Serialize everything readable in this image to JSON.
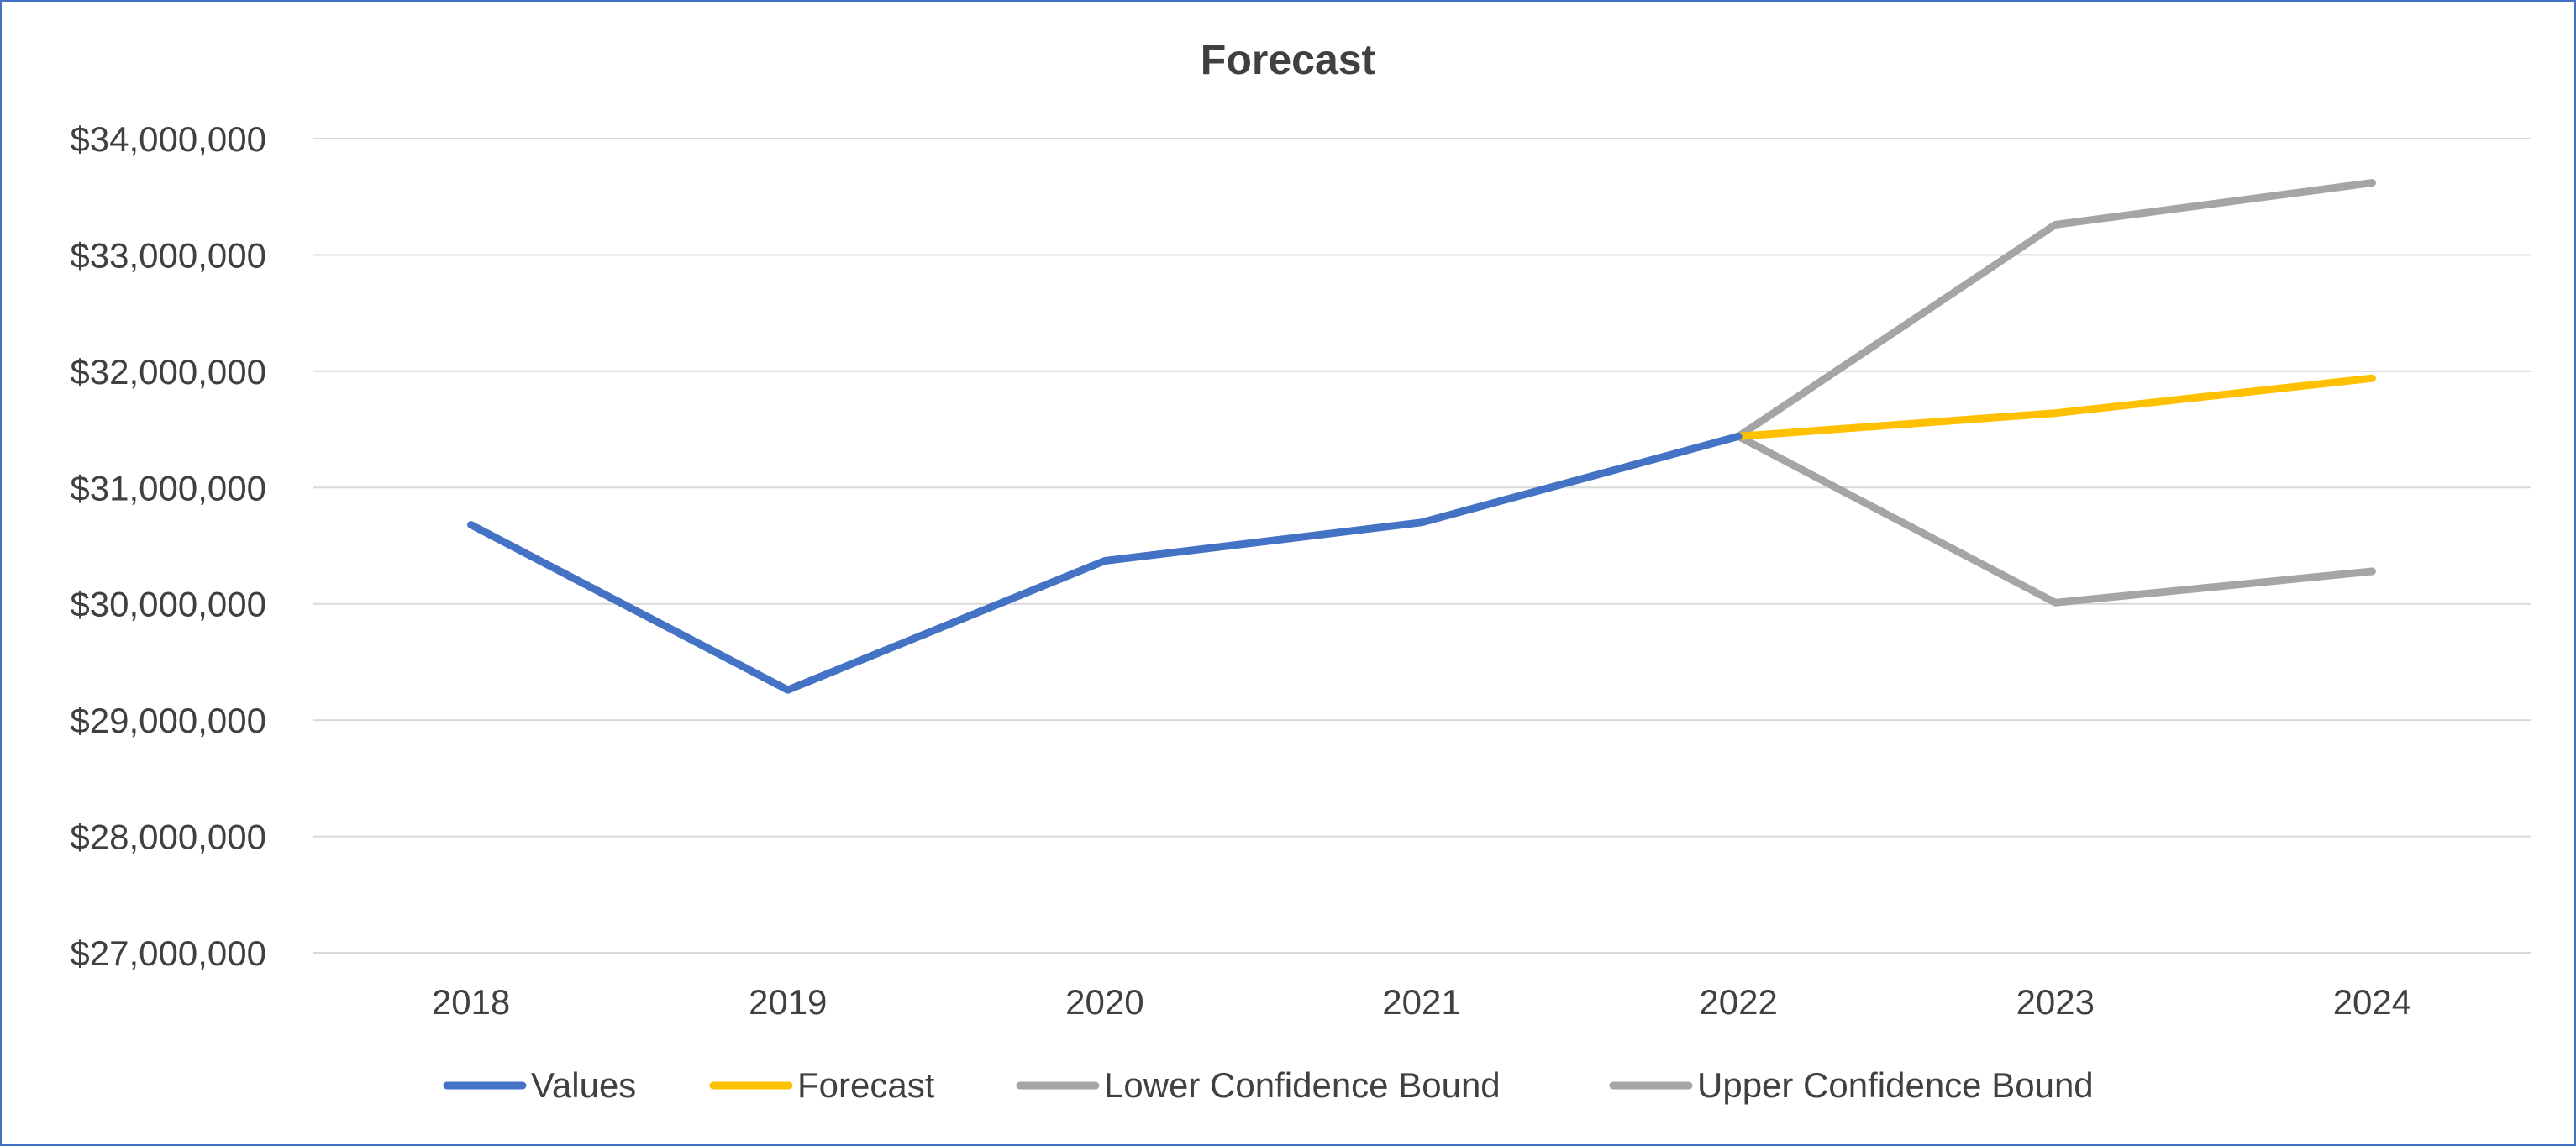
{
  "chart_data": {
    "type": "line",
    "title": "Forecast",
    "xlabel": "",
    "ylabel": "",
    "categories": [
      "2018",
      "2019",
      "2020",
      "2021",
      "2022",
      "2023",
      "2024"
    ],
    "ylim": [
      27000000,
      34000000
    ],
    "yticks": [
      27000000,
      28000000,
      29000000,
      30000000,
      31000000,
      32000000,
      33000000,
      34000000
    ],
    "ytick_labels": [
      "$27,000,000",
      "$28,000,000",
      "$29,000,000",
      "$30,000,000",
      "$31,000,000",
      "$32,000,000",
      "$33,000,000",
      "$34,000,000"
    ],
    "grid": true,
    "legend_position": "bottom",
    "series": [
      {
        "name": "Values",
        "color": "#4472c4",
        "values": [
          30680000,
          29260000,
          30370000,
          30700000,
          31440000,
          null,
          null
        ]
      },
      {
        "name": "Forecast",
        "color": "#ffc000",
        "values": [
          null,
          null,
          null,
          null,
          31440000,
          31640000,
          31940000
        ]
      },
      {
        "name": "Lower Confidence Bound",
        "color": "#a5a5a5",
        "values": [
          null,
          null,
          null,
          null,
          31440000,
          30010000,
          30280000
        ]
      },
      {
        "name": "Upper Confidence Bound",
        "color": "#a5a5a5",
        "values": [
          null,
          null,
          null,
          null,
          31440000,
          33260000,
          33620000
        ]
      }
    ]
  }
}
